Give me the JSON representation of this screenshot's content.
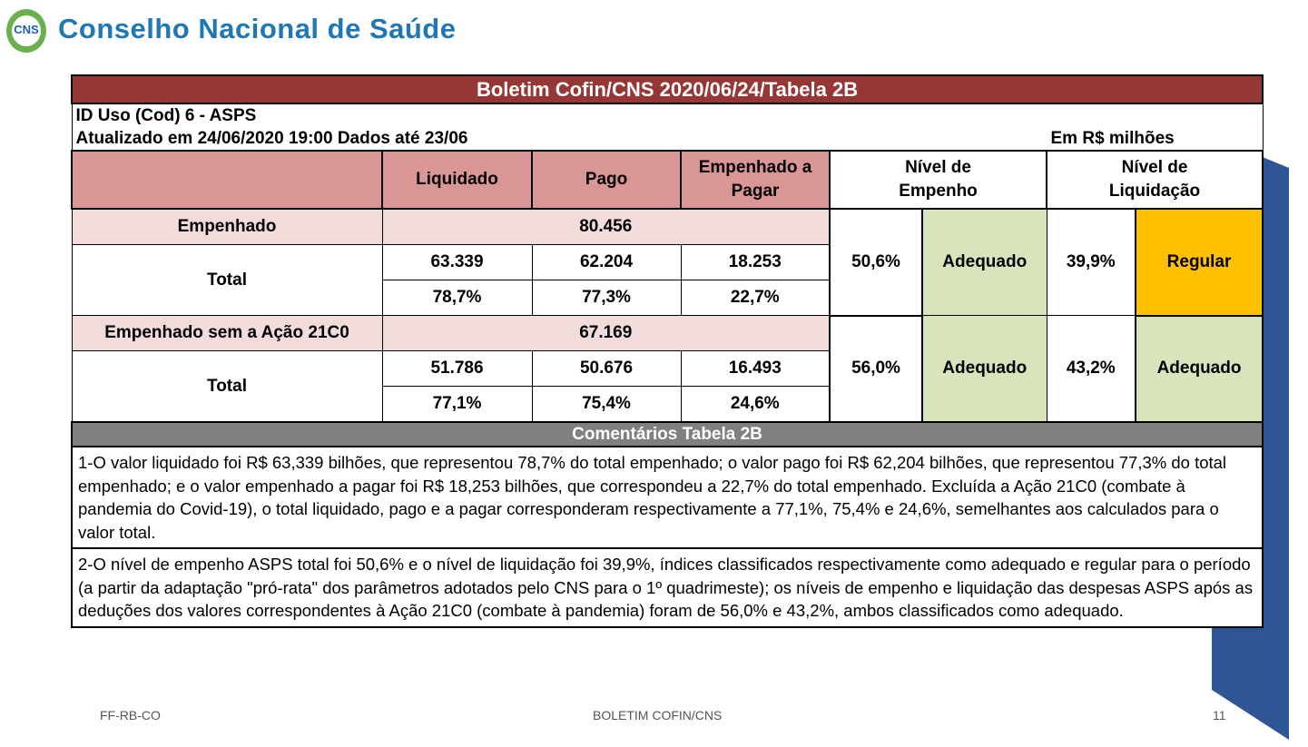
{
  "header": {
    "logo_text": "CNS",
    "title": "Conselho Nacional de Saúde"
  },
  "table": {
    "title": "Boletim Cofin/CNS 2020/06/24/Tabela 2B",
    "info": [
      "ID Uso (Cod) 6 - ASPS",
      "Atualizado em 24/06/2020 19:00 Dados até 23/06"
    ],
    "unit": "Em R$ milhões",
    "columns": [
      "Liquidado",
      "Pago",
      "Empenhado a Pagar"
    ],
    "level_columns": [
      "Nível de Empenho",
      "Nível de Liquidação"
    ],
    "groups": [
      {
        "label": "Empenhado",
        "value": "80.456",
        "total_label": "Total",
        "amounts": [
          "63.339",
          "62.204",
          "18.253"
        ],
        "percents": [
          "78,7%",
          "77,3%",
          "22,7%"
        ],
        "empenho_level": "50,6%",
        "empenho_rating": "Adequado",
        "empenho_color": "#d8e4bc",
        "liquidacao_level": "39,9%",
        "liquidacao_rating": "Regular",
        "liquidacao_color": "#ffc000"
      },
      {
        "label": "Empenhado sem a Ação 21C0",
        "value": "67.169",
        "total_label": "Total",
        "amounts": [
          "51.786",
          "50.676",
          "16.493"
        ],
        "percents": [
          "77,1%",
          "75,4%",
          "24,6%"
        ],
        "empenho_level": "56,0%",
        "empenho_rating": "Adequado",
        "empenho_color": "#d8e4bc",
        "liquidacao_level": "43,2%",
        "liquidacao_rating": "Adequado",
        "liquidacao_color": "#d8e4bc"
      }
    ]
  },
  "comments": {
    "title": "Comentários Tabela 2B",
    "paragraphs": [
      "1-O valor liquidado foi R$ 63,339 bilhões, que representou 78,7% do total empenhado; o valor pago foi R$ 62,204 bilhões, que representou 77,3% do total empenhado; e o valor empenhado a pagar foi R$ 18,253 bilhões, que correspondeu a 22,7% do total empenhado. Excluída a Ação 21C0 (combate à pandemia do Covid-19), o total liquidado, pago e a pagar corresponderam respectivamente a 77,1%, 75,4% e 24,6%, semelhantes aos calculados para o valor total.",
      "2-O nível de empenho ASPS total foi 50,6% e o nível de liquidação foi 39,9%, índices classificados respectivamente como adequado e regular para o período (a partir da adaptação \"pró-rata\" dos parâmetros adotados pelo CNS para o 1º quadrimeste); os níveis de empenho e liquidação das despesas ASPS após as deduções dos valores correspondentes à Ação 21C0 (combate à pandemia) foram de 56,0% e 43,2%, ambos classificados como adequado."
    ]
  },
  "footer": {
    "left": "FF-RB-CO",
    "center": "BOLETIM COFIN/CNS",
    "page": "11"
  }
}
